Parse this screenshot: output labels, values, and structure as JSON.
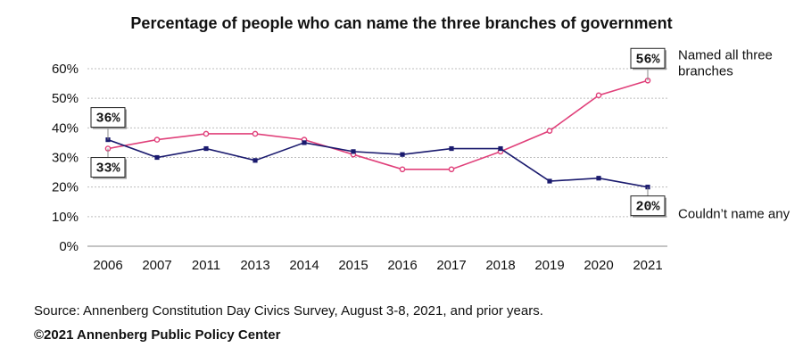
{
  "chart_data": {
    "type": "line",
    "title": "Percentage of people who can name the three branches of government",
    "categories": [
      "2006",
      "2007",
      "2011",
      "2013",
      "2014",
      "2015",
      "2016",
      "2017",
      "2018",
      "2019",
      "2020",
      "2021"
    ],
    "ylim": [
      0,
      60
    ],
    "yticks": [
      "0%",
      "10%",
      "20%",
      "30%",
      "40%",
      "50%",
      "60%"
    ],
    "grid": true,
    "series": [
      {
        "name": "Named all three branches",
        "color": "#e0407a",
        "marker": "circle",
        "values": [
          33,
          36,
          38,
          38,
          36,
          31,
          26,
          26,
          32,
          39,
          51,
          56
        ]
      },
      {
        "name": "Couldn't name any",
        "color": "#1a1a6e",
        "marker": "square",
        "values": [
          36,
          30,
          33,
          29,
          35,
          32,
          31,
          33,
          33,
          22,
          23,
          20
        ]
      }
    ],
    "callouts": [
      {
        "text": "36%",
        "series": 1,
        "index": 0
      },
      {
        "text": "33%",
        "series": 0,
        "index": 0
      },
      {
        "text": "56%",
        "series": 0,
        "index": 11
      },
      {
        "text": "20%",
        "series": 1,
        "index": 11
      }
    ],
    "legend_labels": [
      {
        "lines": [
          "Named all three",
          "branches"
        ],
        "series": 0
      },
      {
        "lines": [
          "Couldn’t name any"
        ],
        "series": 1
      }
    ]
  },
  "footer": {
    "source": "Source: Annenberg Constitution Day Civics Survey, August 3-8, 2021, and prior years.",
    "copyright": "©2021 Annenberg Public Policy Center"
  }
}
